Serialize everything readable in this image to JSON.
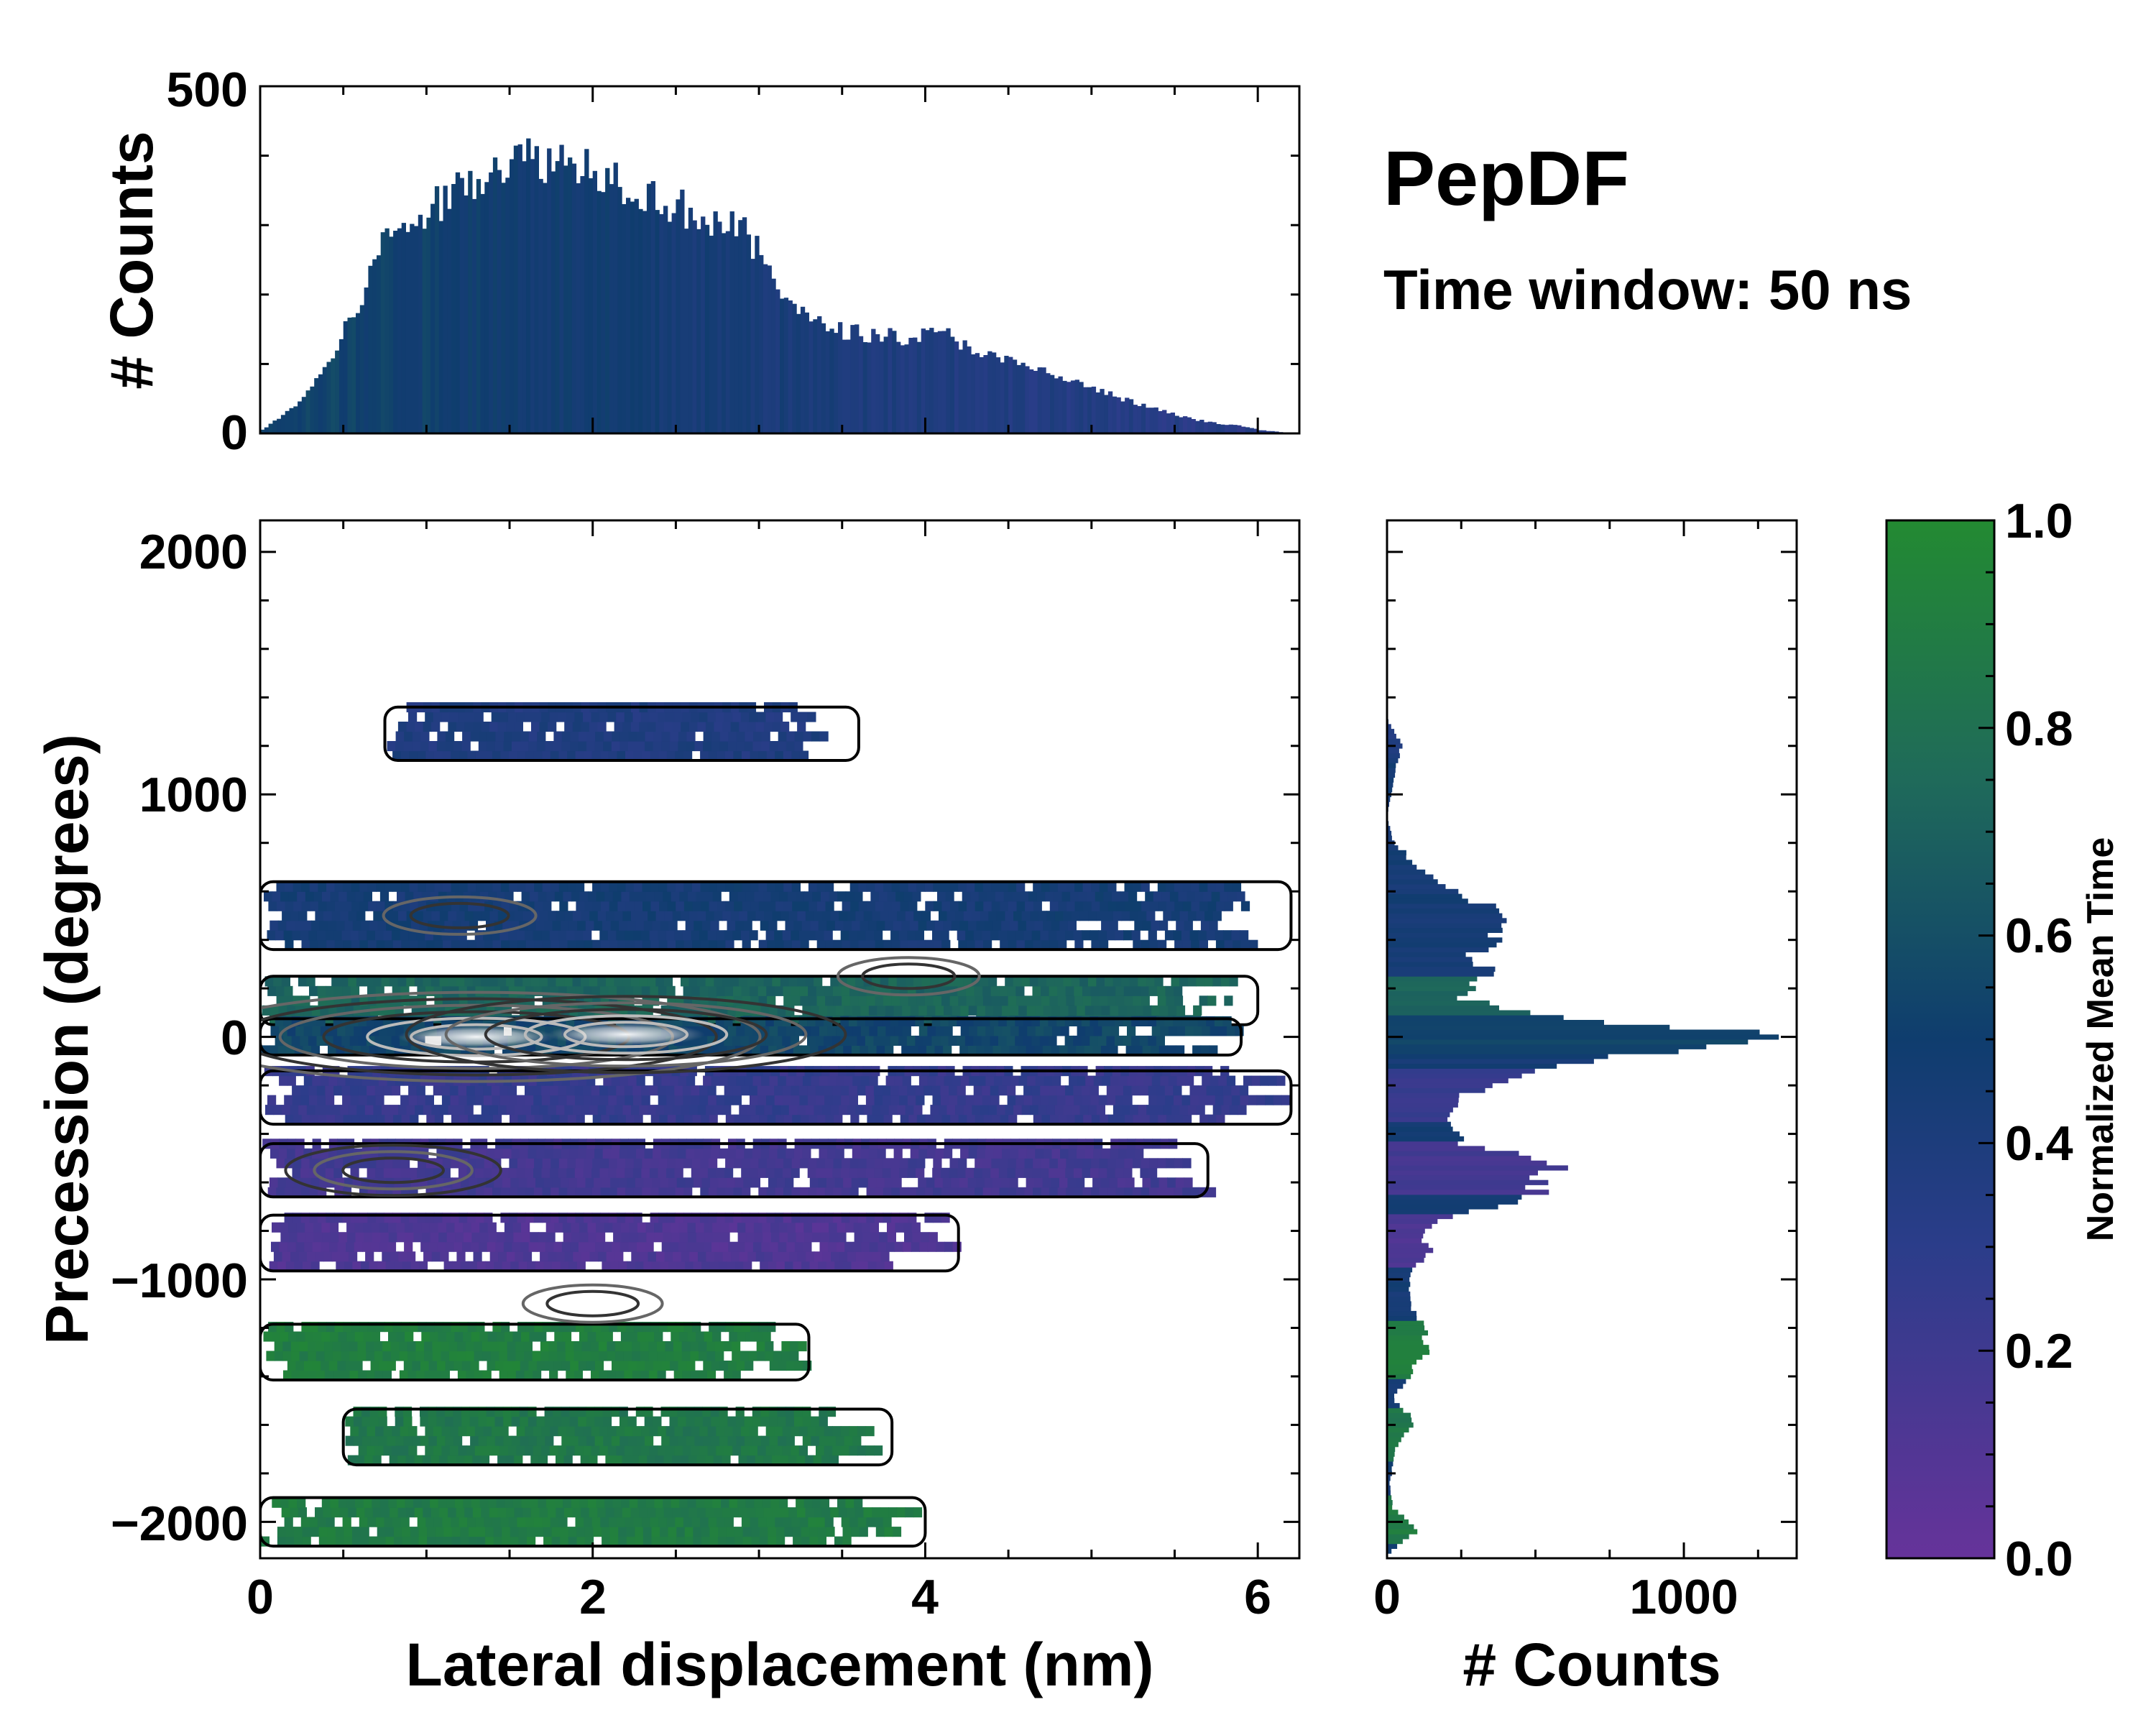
{
  "figure": {
    "title": "PepDF",
    "subtitle": "Time window: 50 ns"
  },
  "chart_data": [
    {
      "type": "heatmap",
      "panel": "main",
      "xlabel": "Lateral displacement (nm)",
      "ylabel": "Precession (degrees)",
      "xlim": [
        0,
        6.25
      ],
      "ylim": [
        -2150,
        2130
      ],
      "xticks": [
        0,
        2,
        4,
        6
      ],
      "xtick_labels": [
        "0",
        "2",
        "4",
        "6"
      ],
      "yticks": [
        2000,
        1000,
        0,
        -1000,
        -2000
      ],
      "ytick_labels": [
        "2000",
        "1000",
        "0",
        "−1000",
        "−2000"
      ],
      "color_value": "Normalized Mean Time",
      "bands": [
        {
          "y_center": 1250,
          "y_width": 220,
          "x_range": [
            0.75,
            3.6
          ],
          "mean_time": 0.38
        },
        {
          "y_center": 500,
          "y_width": 280,
          "x_range": [
            0.0,
            6.2
          ],
          "mean_time": 0.45
        },
        {
          "y_center": 150,
          "y_width": 200,
          "x_range": [
            0.0,
            6.0
          ],
          "mean_time": 0.72
        },
        {
          "y_center": 0,
          "y_width": 150,
          "x_range": [
            0.0,
            5.9
          ],
          "mean_time": 0.55
        },
        {
          "y_center": -250,
          "y_width": 220,
          "x_range": [
            0.0,
            6.2
          ],
          "mean_time": 0.25
        },
        {
          "y_center": -550,
          "y_width": 220,
          "x_range": [
            0.0,
            5.7
          ],
          "mean_time": 0.18
        },
        {
          "y_center": -850,
          "y_width": 230,
          "x_range": [
            0.0,
            4.2
          ],
          "mean_time": 0.12
        },
        {
          "y_center": -1300,
          "y_width": 230,
          "x_range": [
            0.0,
            3.3
          ],
          "mean_time": 0.9
        },
        {
          "y_center": -1650,
          "y_width": 230,
          "x_range": [
            0.5,
            3.8
          ],
          "mean_time": 0.85
        },
        {
          "y_center": -2000,
          "y_width": 200,
          "x_range": [
            0.0,
            4.0
          ],
          "mean_time": 0.88
        }
      ],
      "density_peaks": [
        {
          "x": 1.3,
          "y": 0,
          "level": 1.0
        },
        {
          "x": 2.2,
          "y": 10,
          "level": 0.85
        },
        {
          "x": 0.8,
          "y": -550,
          "level": 0.45
        },
        {
          "x": 1.2,
          "y": 500,
          "level": 0.4
        },
        {
          "x": 3.9,
          "y": 250,
          "level": 0.3
        },
        {
          "x": 2.0,
          "y": -1100,
          "level": 0.28
        }
      ]
    },
    {
      "type": "bar",
      "panel": "top-histogram",
      "xlabel": "",
      "ylabel": "# Counts",
      "xlim": [
        0,
        6.25
      ],
      "ylim": [
        0,
        500
      ],
      "yticks": [
        0,
        500
      ],
      "ytick_labels": [
        "0",
        "500"
      ],
      "bin_width": 0.025,
      "profile_x": [
        0.0,
        0.2,
        0.4,
        0.6,
        0.75,
        1.0,
        1.3,
        1.5,
        1.7,
        2.0,
        2.3,
        2.6,
        2.9,
        3.1,
        3.3,
        3.6,
        3.9,
        4.1,
        4.4,
        4.7,
        5.0,
        5.3,
        5.6,
        5.9,
        6.0,
        6.2
      ],
      "profile_counts": [
        5,
        40,
        100,
        200,
        290,
        320,
        380,
        400,
        400,
        390,
        350,
        320,
        290,
        220,
        160,
        145,
        140,
        145,
        110,
        90,
        65,
        40,
        20,
        10,
        5,
        0
      ]
    },
    {
      "type": "bar",
      "panel": "right-histogram",
      "orientation": "horizontal",
      "xlabel": "# Counts",
      "ylabel": "",
      "xlim": [
        0,
        1380
      ],
      "ylim": [
        -2150,
        2130
      ],
      "xticks": [
        0,
        1000
      ],
      "xtick_labels": [
        "0",
        "1000"
      ],
      "bin_width": 20,
      "profile_y": [
        -2150,
        -2100,
        -2050,
        -2000,
        -1950,
        -1850,
        -1700,
        -1600,
        -1500,
        -1300,
        -1200,
        -1100,
        -1000,
        -900,
        -800,
        -700,
        -650,
        -550,
        -500,
        -450,
        -350,
        -250,
        -150,
        -50,
        0,
        50,
        100,
        150,
        250,
        320,
        400,
        500,
        550,
        700,
        800,
        900,
        1000,
        1100,
        1200,
        1300
      ],
      "profile_counts": [
        0,
        40,
        100,
        80,
        20,
        10,
        30,
        100,
        20,
        140,
        120,
        80,
        70,
        150,
        120,
        380,
        500,
        560,
        450,
        250,
        200,
        280,
        480,
        1100,
        1250,
        820,
        450,
        240,
        380,
        300,
        380,
        420,
        300,
        100,
        20,
        0,
        15,
        30,
        50,
        0
      ]
    },
    {
      "type": "colorbar",
      "panel": "colorbar",
      "label": "Normalized Mean Time",
      "range": [
        0.0,
        1.0
      ],
      "ticks": [
        0.0,
        0.2,
        0.4,
        0.6,
        0.8,
        1.0
      ],
      "tick_labels": [
        "0.0",
        "0.2",
        "0.4",
        "0.6",
        "0.8",
        "1.0"
      ],
      "colors": [
        "#66339a",
        "#2b3d8a",
        "#0f3d6e",
        "#1f6a5a",
        "#238a32"
      ]
    }
  ]
}
